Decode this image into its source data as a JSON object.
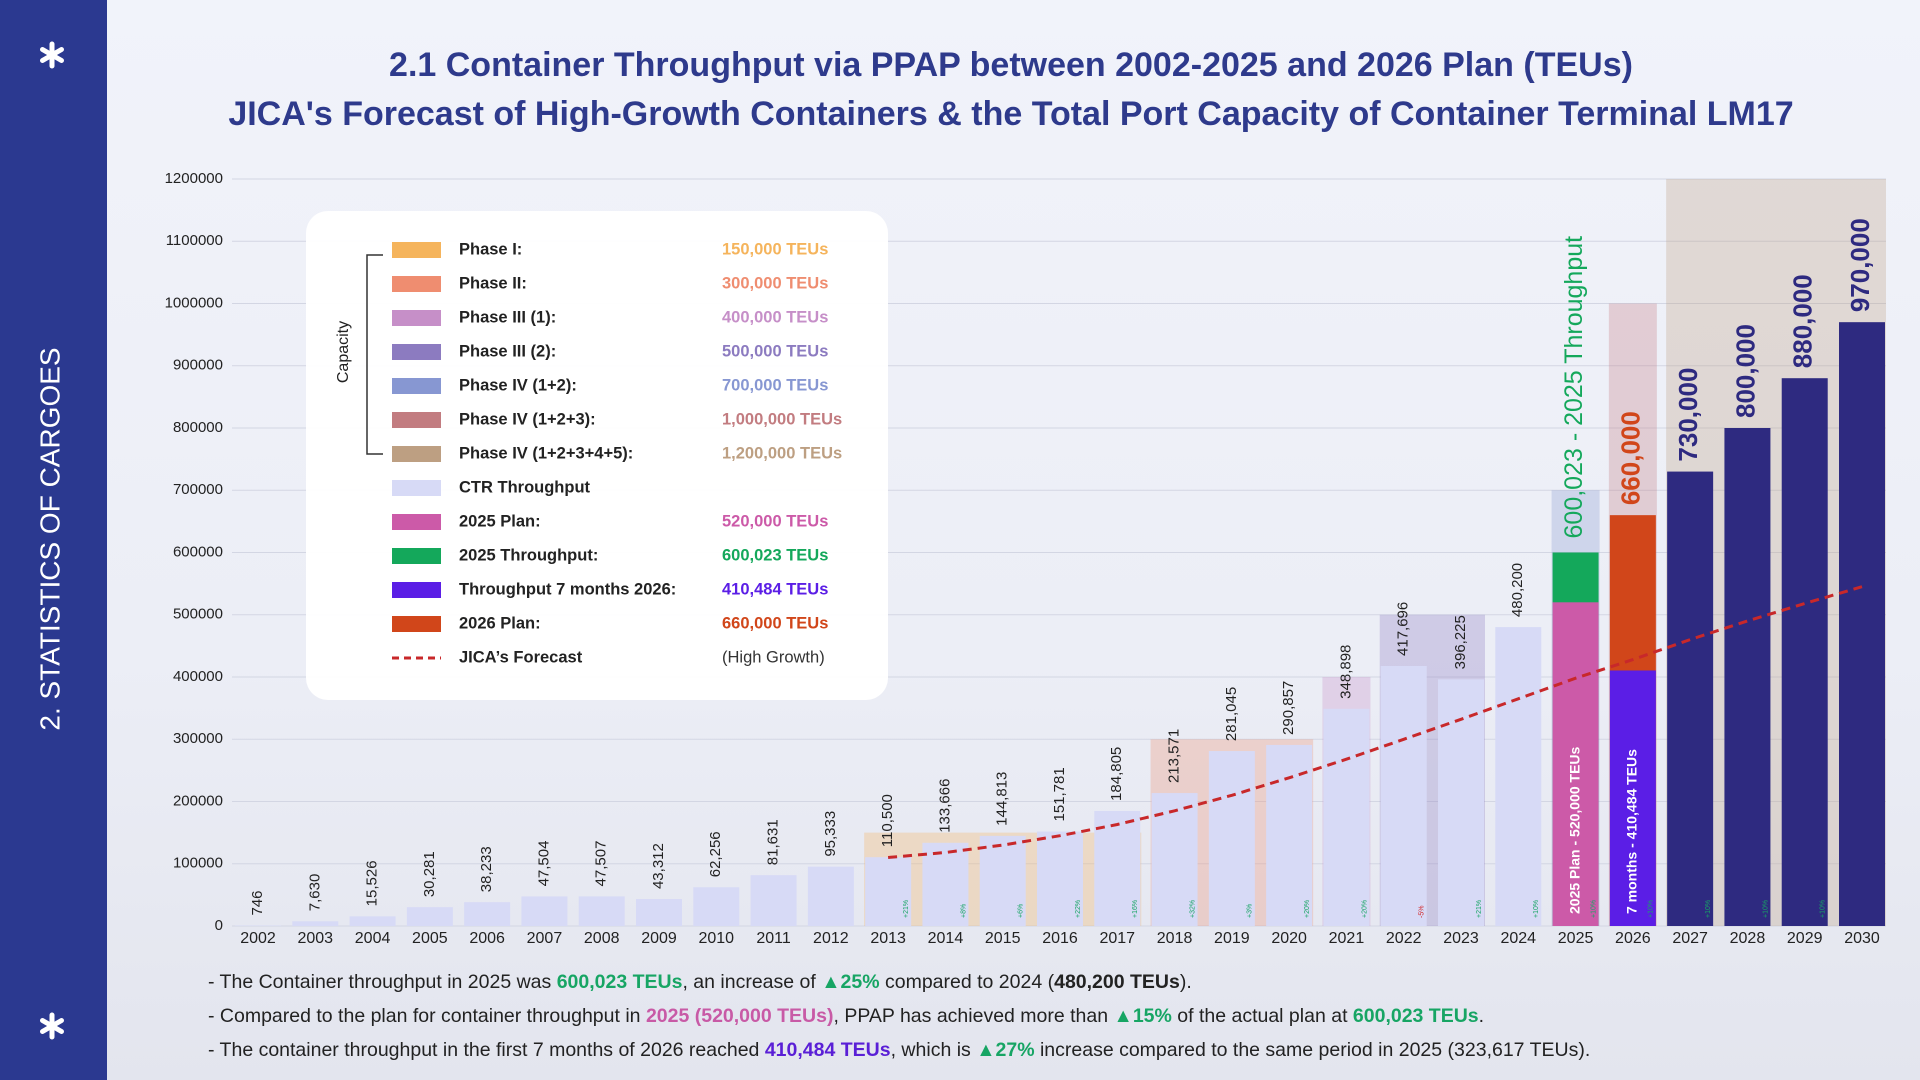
{
  "sidebar": {
    "label": "2. STATISTICS OF CARGOES"
  },
  "chart_data": {
    "type": "bar",
    "title": "2.1 Container Throughput via PPAP between 2002-2025 and 2026 Plan (TEUs)",
    "subtitle": "JICA's Forecast of High-Growth Containers & the Total Port Capacity of Container Terminal LM17",
    "categories": [
      "2002",
      "2003",
      "2004",
      "2005",
      "2006",
      "2007",
      "2008",
      "2009",
      "2010",
      "2011",
      "2012",
      "2013",
      "2014",
      "2015",
      "2016",
      "2017",
      "2018",
      "2019",
      "2020",
      "2021",
      "2022",
      "2023",
      "2024",
      "2025",
      "2026",
      "2027",
      "2028",
      "2029",
      "2030"
    ],
    "ylim": [
      0,
      1200000
    ],
    "yticks": [
      0,
      100000,
      200000,
      300000,
      400000,
      500000,
      600000,
      700000,
      800000,
      900000,
      1000000,
      1100000,
      1200000
    ],
    "grid": true,
    "capacity_label": "Capacity",
    "capacity": [
      {
        "name": "Phase I:",
        "value": 150000,
        "legend_value": "150,000 TEUs",
        "color": "#f5b45c",
        "from": "2013",
        "to": "2017"
      },
      {
        "name": "Phase II:",
        "value": 300000,
        "legend_value": "300,000 TEUs",
        "color": "#ef8d70",
        "from": "2018",
        "to": "2020"
      },
      {
        "name": "Phase III (1):",
        "value": 400000,
        "legend_value": "400,000 TEUs",
        "color": "#c68fc8",
        "from": "2021",
        "to": "2021"
      },
      {
        "name": "Phase III (2):",
        "value": 500000,
        "legend_value": "500,000 TEUs",
        "color": "#8c7bc0",
        "from": "2022",
        "to": "2023"
      },
      {
        "name": "Phase IV (1+2):",
        "value": 700000,
        "legend_value": "700,000 TEUs",
        "color": "#8797d2",
        "from": "2025",
        "to": "2025"
      },
      {
        "name": "Phase IV (1+2+3):",
        "value": 1000000,
        "legend_value": "1,000,000 TEUs",
        "color": "#c27c80",
        "from": "2026",
        "to": "2026"
      },
      {
        "name": "Phase IV (1+2+3+4+5):",
        "value": 1200000,
        "legend_value": "1,200,000 TEUs",
        "color": "#bd9f82",
        "from": "2027",
        "to": "2030"
      }
    ],
    "series": [
      {
        "name": "CTR Throughput",
        "color": "#d7daf6",
        "values": [
          746,
          7630,
          15526,
          30281,
          38233,
          47504,
          47507,
          43312,
          62256,
          81631,
          95333,
          110500,
          133666,
          144813,
          151781,
          184805,
          213571,
          281045,
          290857,
          348898,
          417696,
          396225,
          480200,
          null,
          null,
          null,
          null,
          null,
          null
        ],
        "value_labels": [
          "746",
          "7,630",
          "15,526",
          "30,281",
          "38,233",
          "47,504",
          "47,507",
          "43,312",
          "62,256",
          "81,631",
          "95,333",
          "110,500",
          "133,666",
          "144,813",
          "151,781",
          "184,805",
          "213,571",
          "281,045",
          "290,857",
          "348,898",
          "417,696",
          "396,225",
          "480,200",
          null,
          null,
          null,
          null,
          null,
          null
        ]
      },
      {
        "name": "2025 Plan:",
        "color": "#cc5aa8",
        "legend_value": "520,000 TEUs",
        "bar_text": "2025 Plan - 520,000 TEUs",
        "bar_text_position": "inside",
        "values": [
          null,
          null,
          null,
          null,
          null,
          null,
          null,
          null,
          null,
          null,
          null,
          null,
          null,
          null,
          null,
          null,
          null,
          null,
          null,
          null,
          null,
          null,
          null,
          520000,
          null,
          null,
          null,
          null,
          null
        ]
      },
      {
        "name": "2025 Throughput:",
        "color": "#14a85b",
        "legend_value": "600,023 TEUs",
        "bar_text": "600,023 - 2025 Throughput",
        "bar_text_position": "above",
        "values": [
          null,
          null,
          null,
          null,
          null,
          null,
          null,
          null,
          null,
          null,
          null,
          null,
          null,
          null,
          null,
          null,
          null,
          null,
          null,
          null,
          null,
          null,
          null,
          600023,
          null,
          null,
          null,
          null,
          null
        ]
      },
      {
        "name": "Throughput 7 months 2026:",
        "color": "#5b1ee6",
        "legend_value": "410,484 TEUs",
        "bar_text": "7 months - 410,484 TEUs",
        "bar_text_position": "inside",
        "values": [
          null,
          null,
          null,
          null,
          null,
          null,
          null,
          null,
          null,
          null,
          null,
          null,
          null,
          null,
          null,
          null,
          null,
          null,
          null,
          null,
          null,
          null,
          null,
          null,
          410484,
          null,
          null,
          null,
          null
        ]
      },
      {
        "name": "2026 Plan:",
        "color": "#d1461a",
        "legend_value": "660,000 TEUs",
        "values": [
          null,
          null,
          null,
          null,
          null,
          null,
          null,
          null,
          null,
          null,
          null,
          null,
          null,
          null,
          null,
          null,
          null,
          null,
          null,
          null,
          null,
          null,
          null,
          null,
          660000,
          null,
          null,
          null,
          null
        ],
        "value_labels": [
          null,
          null,
          null,
          null,
          null,
          null,
          null,
          null,
          null,
          null,
          null,
          null,
          null,
          null,
          null,
          null,
          null,
          null,
          null,
          null,
          null,
          null,
          null,
          null,
          "660,000",
          null,
          null,
          null,
          null
        ]
      },
      {
        "name": "JICA’s Forecast",
        "color": "#c8282a",
        "mark": "line",
        "dashed": true,
        "legend_value": "(High Growth)",
        "values": [
          null,
          null,
          null,
          null,
          null,
          null,
          null,
          null,
          null,
          null,
          null,
          110000,
          118000,
          130000,
          145000,
          163000,
          185000,
          210000,
          238000,
          268000,
          300000,
          332000,
          365000,
          398000,
          428000,
          460000,
          490000,
          518000,
          545000
        ]
      },
      {
        "color": "#2e2a80",
        "values": [
          null,
          null,
          null,
          null,
          null,
          null,
          null,
          null,
          null,
          null,
          null,
          null,
          null,
          null,
          null,
          null,
          null,
          null,
          null,
          null,
          null,
          null,
          null,
          null,
          null,
          730000,
          800000,
          880000,
          970000
        ],
        "value_labels": [
          null,
          null,
          null,
          null,
          null,
          null,
          null,
          null,
          null,
          null,
          null,
          null,
          null,
          null,
          null,
          null,
          null,
          null,
          null,
          null,
          null,
          null,
          null,
          null,
          null,
          "730,000",
          "800,000",
          "880,000",
          "970,000"
        ]
      }
    ],
    "growth_labels": [
      null,
      null,
      null,
      null,
      null,
      null,
      null,
      null,
      null,
      null,
      null,
      "+21%",
      "+8%",
      "+6%",
      "+22%",
      "+16%",
      "+32%",
      "+3%",
      "+20%",
      "+20%",
      "-5%",
      "+21%",
      "+10%",
      "+10%",
      "+10%",
      "+10%",
      "+10%",
      "+10%",
      null
    ],
    "notes": [
      [
        {
          "text": "- The Container throughput in 2025 was "
        },
        {
          "text": "600,023 TEUs",
          "color": "#17a564",
          "bold": true
        },
        {
          "text": ", an increase of "
        },
        {
          "text": "▲25%",
          "color": "#17a564",
          "bold": true
        },
        {
          "text": " compared to 2024 ("
        },
        {
          "text": "480,200 TEUs",
          "bold": true
        },
        {
          "text": ")."
        }
      ],
      [
        {
          "text": "- Compared to the plan for container throughput in "
        },
        {
          "text": "2025 (520,000 TEUs)",
          "color": "#c85aa6",
          "bold": true
        },
        {
          "text": ", PPAP has achieved more than "
        },
        {
          "text": "▲15%",
          "color": "#17a564",
          "bold": true
        },
        {
          "text": " of the actual plan at "
        },
        {
          "text": "600,023 TEUs",
          "color": "#17a564",
          "bold": true
        },
        {
          "text": "."
        }
      ],
      [
        {
          "text": "- The container throughput in the first 7 months of 2026 reached "
        },
        {
          "text": "410,484 TEUs",
          "color": "#5a1fd6",
          "bold": true
        },
        {
          "text": ", which is "
        },
        {
          "text": "▲27%",
          "color": "#17a564",
          "bold": true
        },
        {
          "text": " increase compared to the same period in 2025 (323,617 TEUs)."
        }
      ]
    ]
  }
}
